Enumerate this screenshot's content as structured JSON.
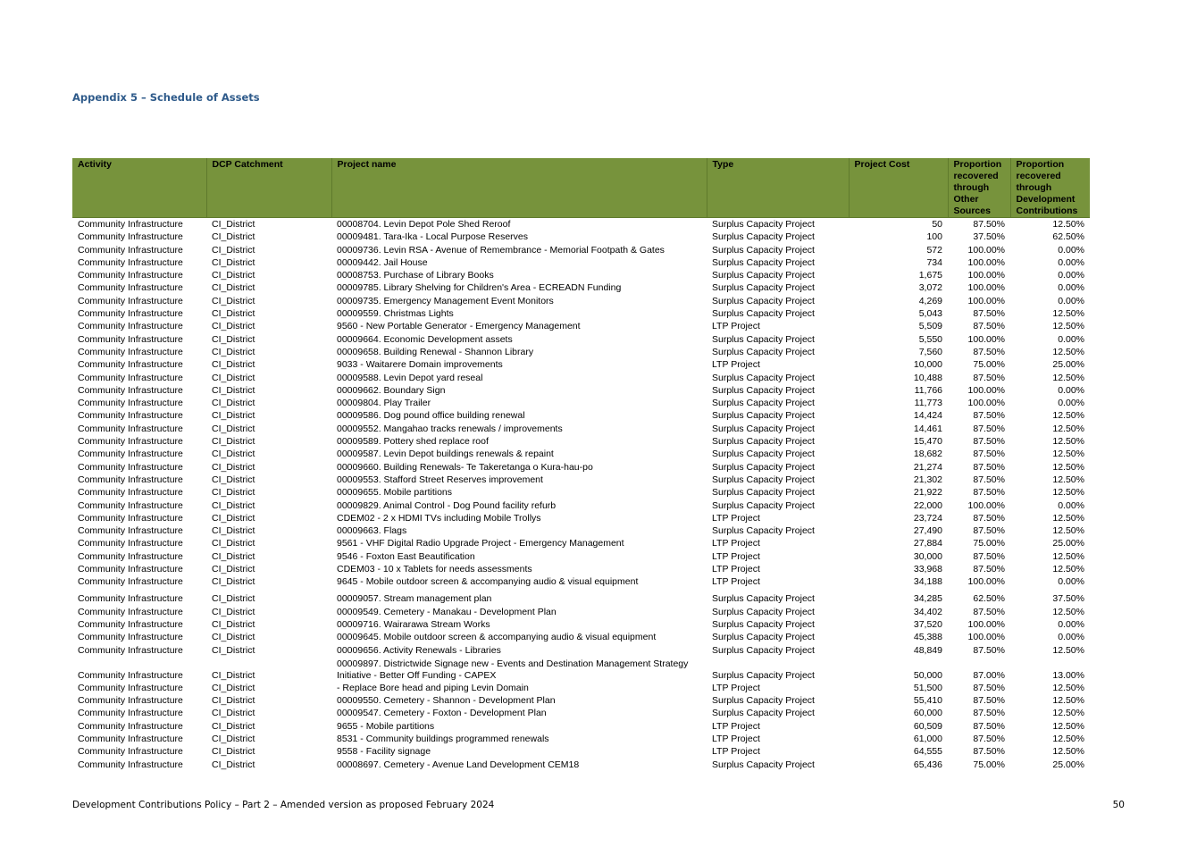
{
  "heading": "Appendix 5 – Schedule of Assets",
  "table": {
    "headers": [
      "Activity",
      "DCP Catchment",
      "Project name",
      "Type",
      "Project Cost",
      "Proportion recovered through Other Sources",
      "Proportion recovered through Development Contributions"
    ],
    "rows": [
      [
        "Community Infrastructure",
        "CI_District",
        "00008704. Levin Depot Pole Shed Reroof",
        "Surplus Capacity Project",
        "50",
        "87.50%",
        "12.50%"
      ],
      [
        "Community Infrastructure",
        "CI_District",
        "00009481. Tara-Ika - Local Purpose Reserves",
        "Surplus Capacity Project",
        "100",
        "37.50%",
        "62.50%"
      ],
      [
        "Community Infrastructure",
        "CI_District",
        "00009736. Levin RSA - Avenue of Remembrance - Memorial Footpath & Gates",
        "Surplus Capacity Project",
        "572",
        "100.00%",
        "0.00%"
      ],
      [
        "Community Infrastructure",
        "CI_District",
        "00009442. Jail House",
        "Surplus Capacity Project",
        "734",
        "100.00%",
        "0.00%"
      ],
      [
        "Community Infrastructure",
        "CI_District",
        "00008753. Purchase of Library Books",
        "Surplus Capacity Project",
        "1,675",
        "100.00%",
        "0.00%"
      ],
      [
        "Community Infrastructure",
        "CI_District",
        "00009785. Library Shelving for Children's Area - ECREADN Funding",
        "Surplus Capacity Project",
        "3,072",
        "100.00%",
        "0.00%"
      ],
      [
        "Community Infrastructure",
        "CI_District",
        "00009735. Emergency Management Event Monitors",
        "Surplus Capacity Project",
        "4,269",
        "100.00%",
        "0.00%"
      ],
      [
        "Community Infrastructure",
        "CI_District",
        "00009559. Christmas Lights",
        "Surplus Capacity Project",
        "5,043",
        "87.50%",
        "12.50%"
      ],
      [
        "Community Infrastructure",
        "CI_District",
        "9560 - New Portable Generator - Emergency Management",
        "LTP Project",
        "5,509",
        "87.50%",
        "12.50%"
      ],
      [
        "Community Infrastructure",
        "CI_District",
        "00009664. Economic Development assets",
        "Surplus Capacity Project",
        "5,550",
        "100.00%",
        "0.00%"
      ],
      [
        "Community Infrastructure",
        "CI_District",
        "00009658. Building Renewal - Shannon Library",
        "Surplus Capacity Project",
        "7,560",
        "87.50%",
        "12.50%"
      ],
      [
        "Community Infrastructure",
        "CI_District",
        "9033 - Waitarere Domain improvements",
        "LTP Project",
        "10,000",
        "75.00%",
        "25.00%"
      ],
      [
        "Community Infrastructure",
        "CI_District",
        "00009588. Levin Depot yard reseal",
        "Surplus Capacity Project",
        "10,488",
        "87.50%",
        "12.50%"
      ],
      [
        "Community Infrastructure",
        "CI_District",
        "00009662. Boundary Sign",
        "Surplus Capacity Project",
        "11,766",
        "100.00%",
        "0.00%"
      ],
      [
        "Community Infrastructure",
        "CI_District",
        "00009804. Play Trailer",
        "Surplus Capacity Project",
        "11,773",
        "100.00%",
        "0.00%"
      ],
      [
        "Community Infrastructure",
        "CI_District",
        "00009586. Dog pound office building renewal",
        "Surplus Capacity Project",
        "14,424",
        "87.50%",
        "12.50%"
      ],
      [
        "Community Infrastructure",
        "CI_District",
        "00009552. Mangahao tracks renewals / improvements",
        "Surplus Capacity Project",
        "14,461",
        "87.50%",
        "12.50%"
      ],
      [
        "Community Infrastructure",
        "CI_District",
        "00009589. Pottery shed replace roof",
        "Surplus Capacity Project",
        "15,470",
        "87.50%",
        "12.50%"
      ],
      [
        "Community Infrastructure",
        "CI_District",
        "00009587. Levin Depot buildings renewals & repaint",
        "Surplus Capacity Project",
        "18,682",
        "87.50%",
        "12.50%"
      ],
      [
        "Community Infrastructure",
        "CI_District",
        "00009660. Building Renewals- Te Takeretanga o Kura-hau-po",
        "Surplus Capacity Project",
        "21,274",
        "87.50%",
        "12.50%"
      ],
      [
        "Community Infrastructure",
        "CI_District",
        "00009553. Stafford Street Reserves improvement",
        "Surplus Capacity Project",
        "21,302",
        "87.50%",
        "12.50%"
      ],
      [
        "Community Infrastructure",
        "CI_District",
        "00009655. Mobile partitions",
        "Surplus Capacity Project",
        "21,922",
        "87.50%",
        "12.50%"
      ],
      [
        "Community Infrastructure",
        "CI_District",
        "00009829. Animal Control  - Dog Pound facility refurb",
        "Surplus Capacity Project",
        "22,000",
        "100.00%",
        "0.00%"
      ],
      [
        "Community Infrastructure",
        "CI_District",
        "CDEM02 - 2 x HDMI TVs including Mobile Trollys",
        "LTP Project",
        "23,724",
        "87.50%",
        "12.50%"
      ],
      [
        "Community Infrastructure",
        "CI_District",
        "00009663. Flags",
        "Surplus Capacity Project",
        "27,490",
        "87.50%",
        "12.50%"
      ],
      [
        "Community Infrastructure",
        "CI_District",
        "9561 - VHF Digital Radio Upgrade Project - Emergency Management",
        "LTP Project",
        "27,884",
        "75.00%",
        "25.00%"
      ],
      [
        "Community Infrastructure",
        "CI_District",
        "9546 - Foxton East Beautification",
        "LTP Project",
        "30,000",
        "87.50%",
        "12.50%"
      ],
      [
        "Community Infrastructure",
        "CI_District",
        "CDEM03 - 10 x Tablets for needs assessments",
        "LTP Project",
        "33,968",
        "87.50%",
        "12.50%"
      ],
      [
        "Community Infrastructure",
        "CI_District",
        "9645 - Mobile outdoor screen & accompanying audio & visual equipment",
        "LTP Project",
        "34,188",
        "100.00%",
        "0.00%"
      ],
      [
        "Community Infrastructure",
        "CI_District",
        "00009057. Stream management plan",
        "Surplus Capacity Project",
        "34,285",
        "62.50%",
        "37.50%"
      ],
      [
        "Community Infrastructure",
        "CI_District",
        "00009549. Cemetery - Manakau - Development Plan",
        "Surplus Capacity Project",
        "34,402",
        "87.50%",
        "12.50%"
      ],
      [
        "Community Infrastructure",
        "CI_District",
        "00009716. Wairarawa Stream Works",
        "Surplus Capacity Project",
        "37,520",
        "100.00%",
        "0.00%"
      ],
      [
        "Community Infrastructure",
        "CI_District",
        "00009645. Mobile outdoor screen & accompanying audio & visual equipment",
        "Surplus Capacity Project",
        "45,388",
        "100.00%",
        "0.00%"
      ],
      [
        "Community Infrastructure",
        "CI_District",
        "00009656. Activity Renewals - Libraries",
        "Surplus Capacity Project",
        "48,849",
        "87.50%",
        "12.50%"
      ],
      [
        "Community Infrastructure",
        "CI_District",
        "00009897. Districtwide Signage new - Events and Destination Management Strategy Initiative - Better Off Funding - CAPEX",
        "Surplus Capacity Project",
        "50,000",
        "87.00%",
        "13.00%"
      ],
      [
        "Community Infrastructure",
        "CI_District",
        " - Replace Bore head and piping Levin Domain",
        "LTP Project",
        "51,500",
        "87.50%",
        "12.50%"
      ],
      [
        "Community Infrastructure",
        "CI_District",
        "00009550. Cemetery - Shannon - Development Plan",
        "Surplus Capacity Project",
        "55,410",
        "87.50%",
        "12.50%"
      ],
      [
        "Community Infrastructure",
        "CI_District",
        "00009547. Cemetery - Foxton - Development Plan",
        "Surplus Capacity Project",
        "60,000",
        "87.50%",
        "12.50%"
      ],
      [
        "Community Infrastructure",
        "CI_District",
        "9655 - Mobile partitions",
        "LTP Project",
        "60,509",
        "87.50%",
        "12.50%"
      ],
      [
        "Community Infrastructure",
        "CI_District",
        "8531 - Community buildings programmed renewals",
        "LTP Project",
        "61,000",
        "87.50%",
        "12.50%"
      ],
      [
        "Community Infrastructure",
        "CI_District",
        "9558 - Facility signage",
        "LTP Project",
        "64,555",
        "87.50%",
        "12.50%"
      ],
      [
        "Community Infrastructure",
        "CI_District",
        "00008697. Cemetery - Avenue Land Development CEM18",
        "Surplus Capacity Project",
        "65,436",
        "75.00%",
        "25.00%"
      ]
    ]
  },
  "footer": {
    "text": "Development Contributions Policy – Part 2 –  Amended version as proposed February 2024",
    "page": "50"
  }
}
